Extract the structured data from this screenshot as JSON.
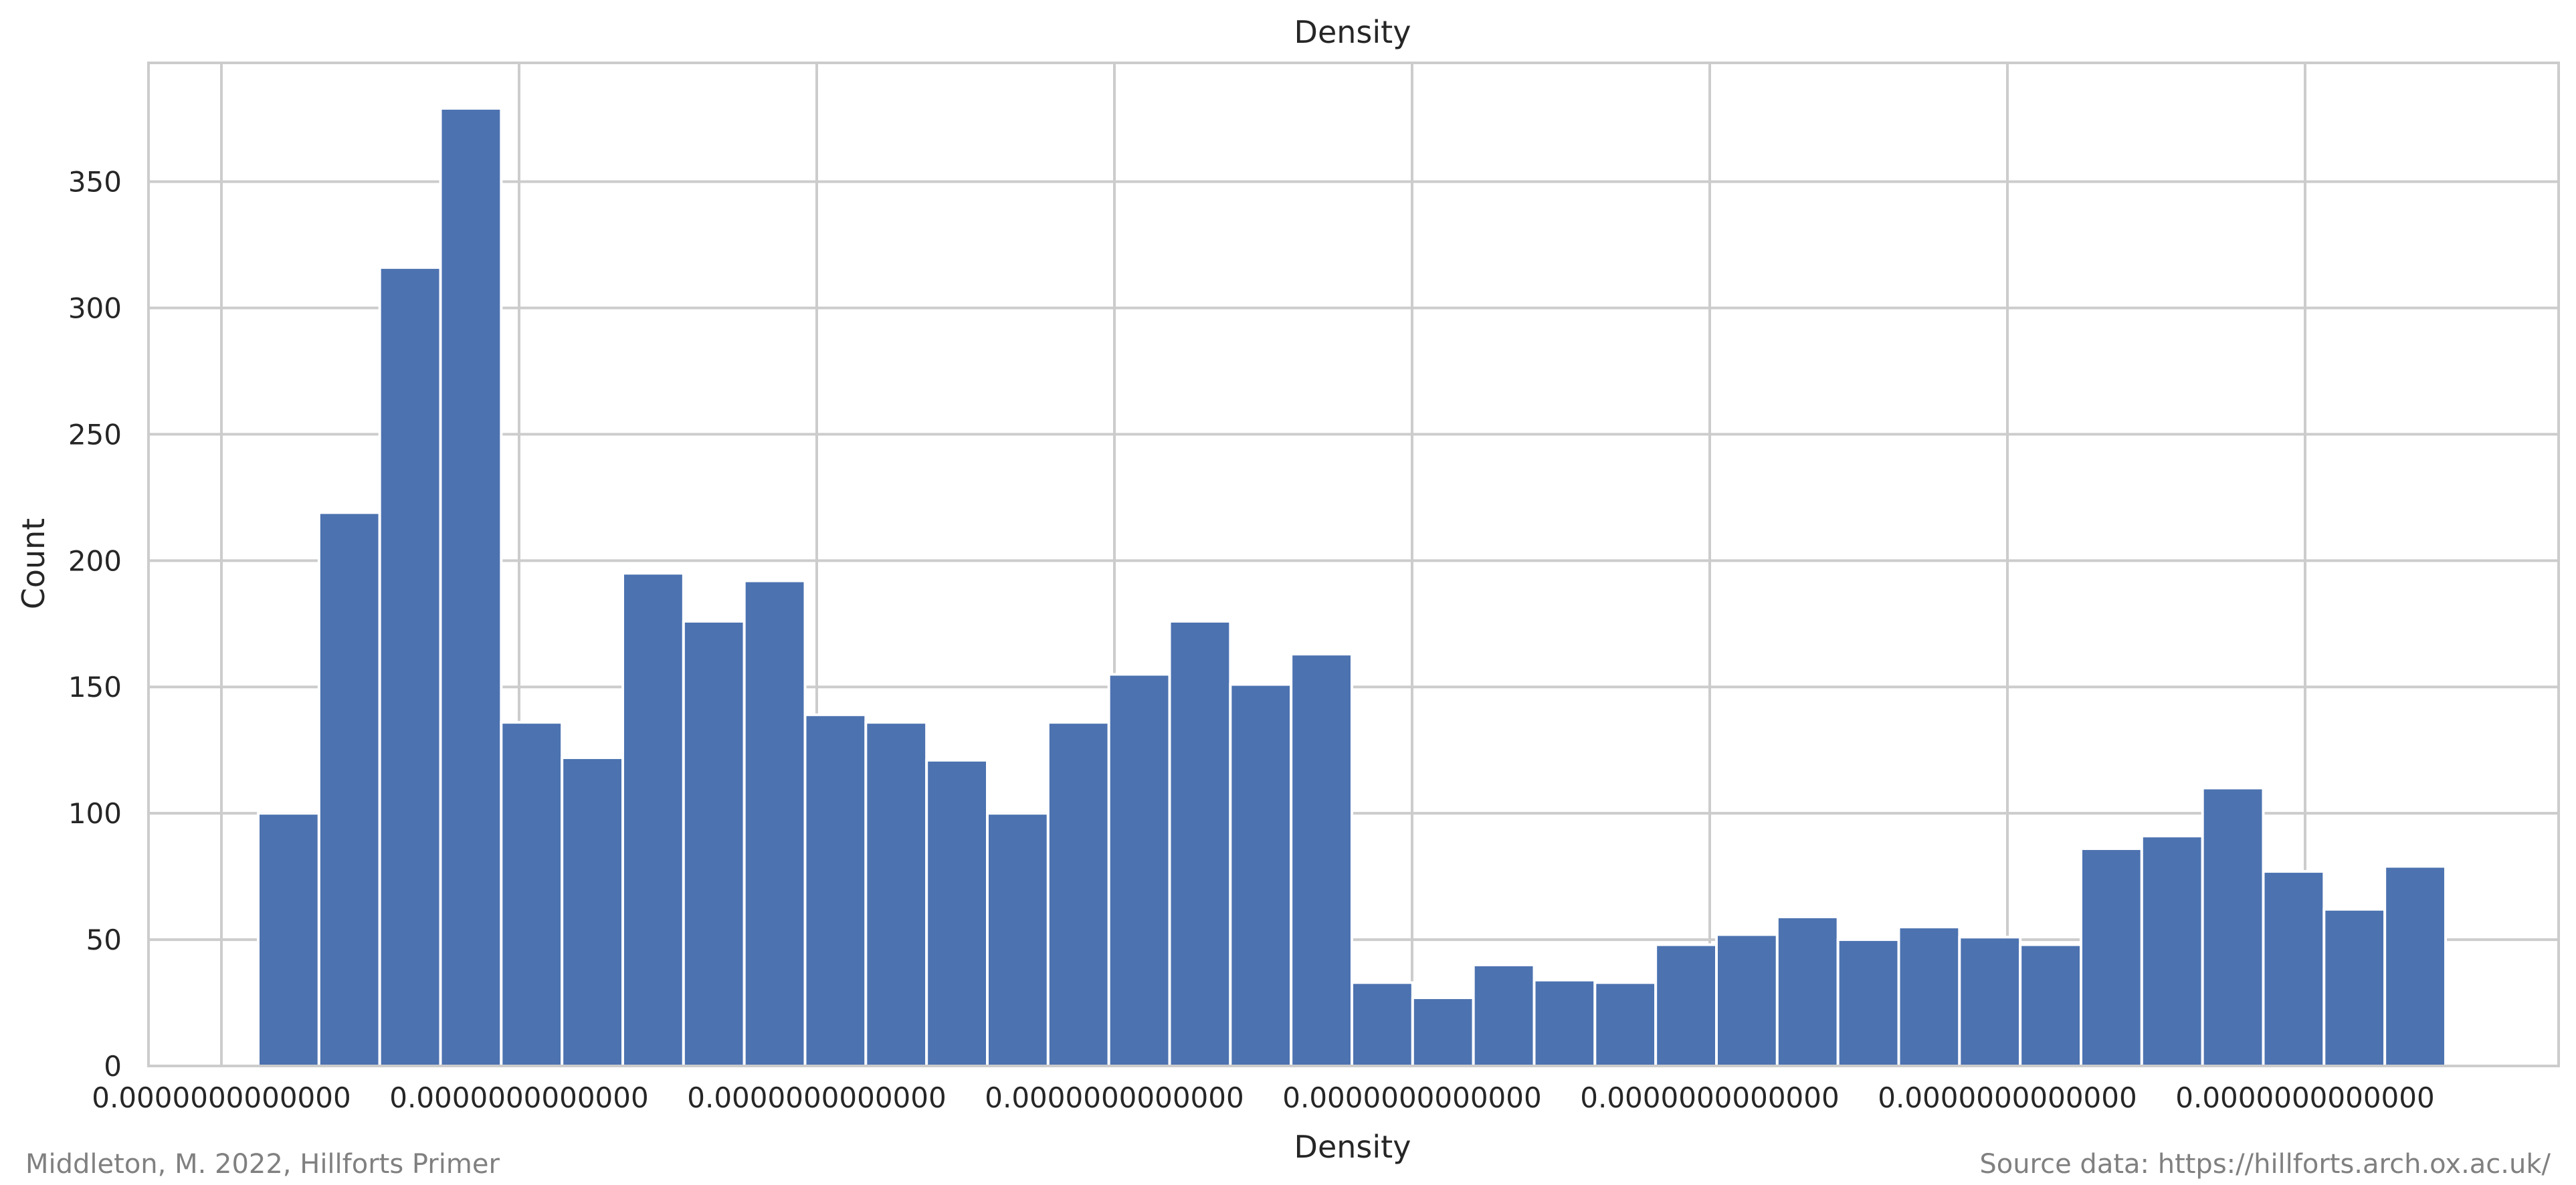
{
  "chart_data": {
    "type": "bar",
    "title": "Density",
    "xlabel": "Density",
    "ylabel": "Count",
    "ylim": [
      0,
      397
    ],
    "y_ticks": [
      0,
      50,
      100,
      150,
      200,
      250,
      300,
      350
    ],
    "x_tick_labels": [
      "0.0000000000000",
      "0.0000000000000",
      "0.0000000000000",
      "0.0000000000000",
      "0.0000000000000",
      "0.0000000000000",
      "0.0000000000000",
      "0.0000000000000"
    ],
    "values": [
      100,
      219,
      316,
      379,
      136,
      122,
      195,
      176,
      192,
      139,
      136,
      121,
      100,
      136,
      155,
      176,
      151,
      163,
      33,
      27,
      40,
      34,
      33,
      48,
      52,
      59,
      50,
      55,
      51,
      48,
      86,
      91,
      110,
      77,
      62,
      79
    ],
    "grid": true,
    "bar_color": "#4c72b0",
    "grid_color": "#cccccc"
  },
  "footer": {
    "left": "Middleton, M. 2022, Hillforts Primer",
    "right": "Source data: https://hillforts.arch.ox.ac.uk/"
  }
}
